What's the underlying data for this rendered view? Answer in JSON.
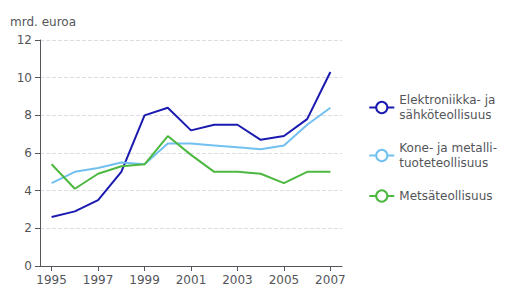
{
  "chart_data": {
    "type": "line",
    "ylabel": "mrd. euroa",
    "x": [
      1995,
      1996,
      1997,
      1998,
      1999,
      2000,
      2001,
      2002,
      2003,
      2004,
      2005,
      2006,
      2007
    ],
    "series": [
      {
        "name": "Elektroniikka- ja\nsähköteollisuus",
        "color": "#1a1ab0",
        "values": [
          2.6,
          2.9,
          3.5,
          5.0,
          8.0,
          8.4,
          7.2,
          7.5,
          7.5,
          6.7,
          6.9,
          7.8,
          10.3
        ]
      },
      {
        "name": "Kone- ja metalli-\ntuoteteollisuus",
        "color": "#72c0f0",
        "values": [
          4.4,
          5.0,
          5.2,
          5.5,
          5.4,
          6.5,
          6.5,
          6.4,
          6.3,
          6.2,
          6.4,
          7.5,
          8.4
        ]
      },
      {
        "name": "Metsäteollisuus",
        "color": "#4db840",
        "values": [
          5.4,
          4.1,
          4.9,
          5.3,
          5.4,
          6.9,
          5.9,
          5.0,
          5.0,
          4.9,
          4.4,
          5.0,
          5.0
        ]
      }
    ],
    "xlim": [
      1994.5,
      2007.5
    ],
    "xticks": [
      1995,
      1997,
      1999,
      2001,
      2003,
      2005,
      2007
    ],
    "ylim": [
      0,
      12
    ],
    "yticks": [
      0,
      2,
      4,
      6,
      8,
      10,
      12
    ],
    "grid": true,
    "legend": "right"
  }
}
